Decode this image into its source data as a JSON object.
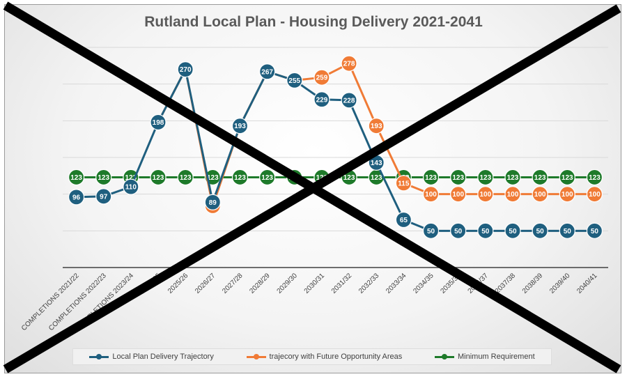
{
  "chart_data": {
    "type": "line",
    "title": "Rutland Local Plan - Housing Delivery 2021-2041",
    "xlabel": "",
    "ylabel": "",
    "ylim": [
      0,
      300
    ],
    "grid": true,
    "legend_position": "bottom",
    "categories": [
      "COMPLETIONS 2021/22",
      "COMPLETIONS 2022/23",
      "COMPLETIONS 2023/24",
      "2024/25",
      "2025/26",
      "2026/27",
      "2027/28",
      "2028/29",
      "2029/30",
      "2030/31",
      "2031/32",
      "2032/33",
      "2033/34",
      "2034/35",
      "2035/36",
      "2036/37",
      "2037/38",
      "2038/39",
      "2039/40",
      "2040/41"
    ],
    "series": [
      {
        "name": "Local Plan Delivery Trajectory",
        "color": "#1f5f7f",
        "values": [
          96,
          97,
          110,
          198,
          270,
          89,
          193,
          267,
          255,
          229,
          228,
          143,
          65,
          50,
          50,
          50,
          50,
          50,
          50,
          50
        ]
      },
      {
        "name": "trajecory with Future Opportunity Areas",
        "color": "#f07b36",
        "values": [
          null,
          null,
          null,
          198,
          270,
          84,
          193,
          267,
          255,
          259,
          278,
          193,
          115,
          100,
          100,
          100,
          100,
          100,
          100,
          100
        ]
      },
      {
        "name": "Minimum Requirement",
        "color": "#1e7a2a",
        "values": [
          123,
          123,
          123,
          123,
          123,
          123,
          123,
          123,
          123,
          123,
          123,
          123,
          123,
          123,
          123,
          123,
          123,
          123,
          123,
          123
        ]
      }
    ],
    "overlay": "large black X drawn across the whole chart"
  }
}
